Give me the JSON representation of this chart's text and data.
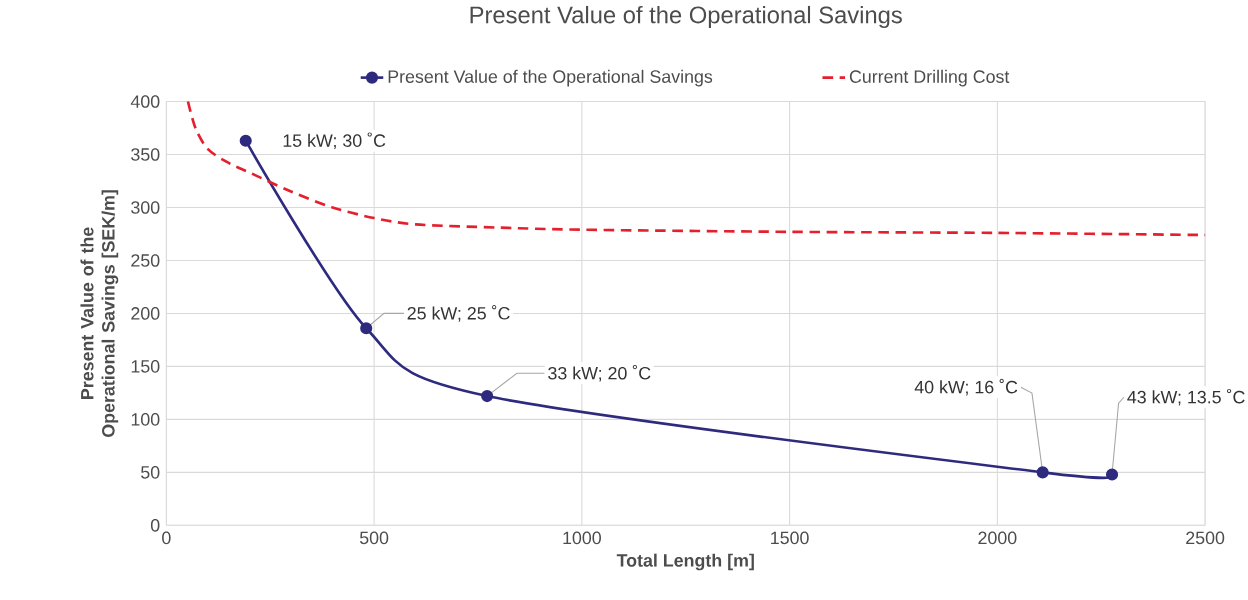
{
  "chart_data": {
    "type": "line",
    "title": "Present Value of the Operational Savings",
    "xlabel": "Total Length [m]",
    "ylabel": "Present Value of the Operational Savings [SEK/m]",
    "xlim": [
      0,
      2500
    ],
    "ylim": [
      0,
      400
    ],
    "xticks": [
      0,
      500,
      1000,
      1500,
      2000,
      2500
    ],
    "yticks": [
      0,
      50,
      100,
      150,
      200,
      250,
      300,
      350,
      400
    ],
    "grid": true,
    "legend": "top",
    "series": [
      {
        "name": "Present Value of the Operational Savings",
        "color": "#2e2a7e",
        "marker": "circle",
        "line_style": "solid",
        "x": [
          191,
          481,
          772,
          2109,
          2276
        ],
        "values": [
          363,
          186,
          122,
          50,
          48
        ]
      },
      {
        "name": "Current Drilling Cost",
        "color": "#e5202e",
        "marker": "none",
        "line_style": "dashed",
        "x": [
          52,
          70,
          100,
          150,
          200,
          300,
          400,
          500,
          600,
          800,
          1000,
          1500,
          2000,
          2500
        ],
        "values": [
          400,
          375,
          355,
          342,
          333,
          315,
          300,
          290,
          284,
          281,
          279,
          277,
          276,
          274
        ]
      }
    ],
    "annotations": [
      {
        "text": "15 kW;  30 ˚C",
        "x": 191,
        "y": 363
      },
      {
        "text": "25 kW; 25 ˚C",
        "x": 481,
        "y": 186
      },
      {
        "text": "33 kW; 20 ˚C",
        "x": 772,
        "y": 122
      },
      {
        "text": "40 kW; 16 ˚C",
        "x": 2109,
        "y": 50
      },
      {
        "text": "43 kW; 13.5 ˚C",
        "x": 2276,
        "y": 48
      }
    ]
  }
}
